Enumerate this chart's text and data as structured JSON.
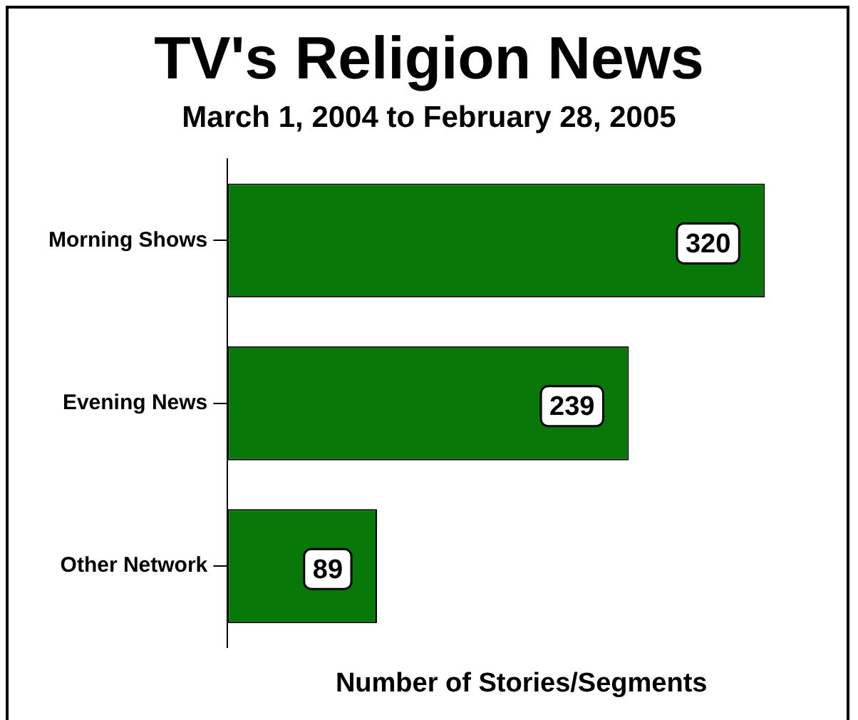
{
  "chart_data": {
    "type": "bar",
    "orientation": "horizontal",
    "title": "TV's Religion News",
    "subtitle": "March 1, 2004 to February 28, 2005",
    "xlabel": "Number of Stories/Segments",
    "categories": [
      "Morning Shows",
      "Evening News",
      "Other Network"
    ],
    "values": [
      320,
      239,
      89
    ],
    "color": "#087808",
    "data_labels": true,
    "grid": false,
    "legend": false
  }
}
